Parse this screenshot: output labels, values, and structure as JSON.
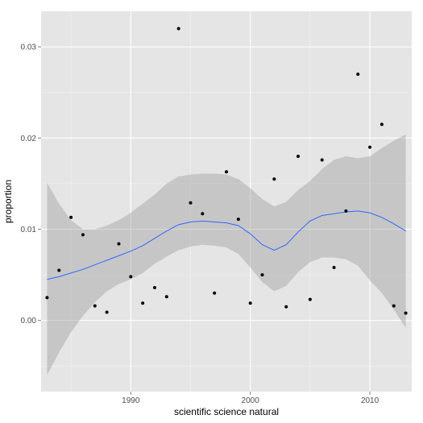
{
  "chart_data": {
    "type": "scatter",
    "xlabel": "scientific science natural",
    "ylabel": "proportion",
    "xlim": [
      1982.5,
      2013.5
    ],
    "ylim": [
      -0.0078,
      0.0339
    ],
    "grid": true,
    "x_ticks": [
      1990,
      2000,
      2010
    ],
    "x_tick_labels": [
      "1990",
      "2000",
      "2010"
    ],
    "y_ticks": [
      0.0,
      0.01,
      0.02,
      0.03
    ],
    "y_tick_labels": [
      "0.00",
      "0.01",
      "0.02",
      "0.03"
    ],
    "points": {
      "x": [
        1983,
        1984,
        1985,
        1986,
        1987,
        1988,
        1989,
        1990,
        1991,
        1992,
        1993,
        1994,
        1995,
        1996,
        1997,
        1998,
        1999,
        2000,
        2001,
        2002,
        2003,
        2004,
        2005,
        2006,
        2007,
        2008,
        2009,
        2010,
        2011,
        2012,
        2013
      ],
      "y": [
        0.0025,
        0.0055,
        0.0113,
        0.0094,
        0.0016,
        0.0009,
        0.0084,
        0.0048,
        0.0019,
        0.0036,
        0.0026,
        0.032,
        0.0129,
        0.0117,
        0.003,
        0.0163,
        0.0111,
        0.0019,
        0.005,
        0.0155,
        0.0015,
        0.018,
        0.0023,
        0.0176,
        0.0058,
        0.012,
        0.027,
        0.019,
        0.0215,
        0.0016,
        0.0008
      ]
    },
    "smooth": {
      "x": [
        1983,
        1984,
        1985,
        1986,
        1987,
        1988,
        1989,
        1990,
        1991,
        1992,
        1993,
        1994,
        1995,
        1996,
        1997,
        1998,
        1999,
        2000,
        2001,
        2002,
        2003,
        2004,
        2005,
        2006,
        2007,
        2008,
        2009,
        2010,
        2011,
        2012,
        2013
      ],
      "y": [
        0.0045,
        0.0048,
        0.0052,
        0.0056,
        0.0061,
        0.0066,
        0.0071,
        0.0076,
        0.0082,
        0.009,
        0.0098,
        0.0105,
        0.0108,
        0.0109,
        0.0108,
        0.0107,
        0.0104,
        0.0095,
        0.0083,
        0.0077,
        0.0083,
        0.0097,
        0.0109,
        0.0115,
        0.0117,
        0.0119,
        0.012,
        0.0118,
        0.0113,
        0.0106,
        0.0098
      ],
      "lower": [
        -0.006,
        -0.0035,
        -0.0013,
        0.0005,
        0.002,
        0.0032,
        0.004,
        0.0045,
        0.0052,
        0.0062,
        0.007,
        0.0077,
        0.0081,
        0.0083,
        0.0082,
        0.008,
        0.0073,
        0.0058,
        0.0042,
        0.0032,
        0.0038,
        0.0053,
        0.0064,
        0.0069,
        0.0069,
        0.0067,
        0.006,
        0.0044,
        0.003,
        0.0012,
        -0.0008
      ],
      "upper": [
        0.0151,
        0.0128,
        0.011,
        0.01,
        0.01,
        0.0104,
        0.011,
        0.0118,
        0.0128,
        0.0138,
        0.015,
        0.0158,
        0.016,
        0.0161,
        0.0161,
        0.016,
        0.0155,
        0.0145,
        0.0133,
        0.0125,
        0.013,
        0.0143,
        0.0153,
        0.0166,
        0.0176,
        0.018,
        0.0178,
        0.018,
        0.0189,
        0.0197,
        0.0204
      ]
    },
    "colors": {
      "panel": "#e5e5e5",
      "grid_major": "#ffffff",
      "grid_minor": "#f2f2f2",
      "ribbon": "#999999",
      "ribbon_opacity": 0.4,
      "line": "#3366ff",
      "point": "#000000"
    }
  }
}
